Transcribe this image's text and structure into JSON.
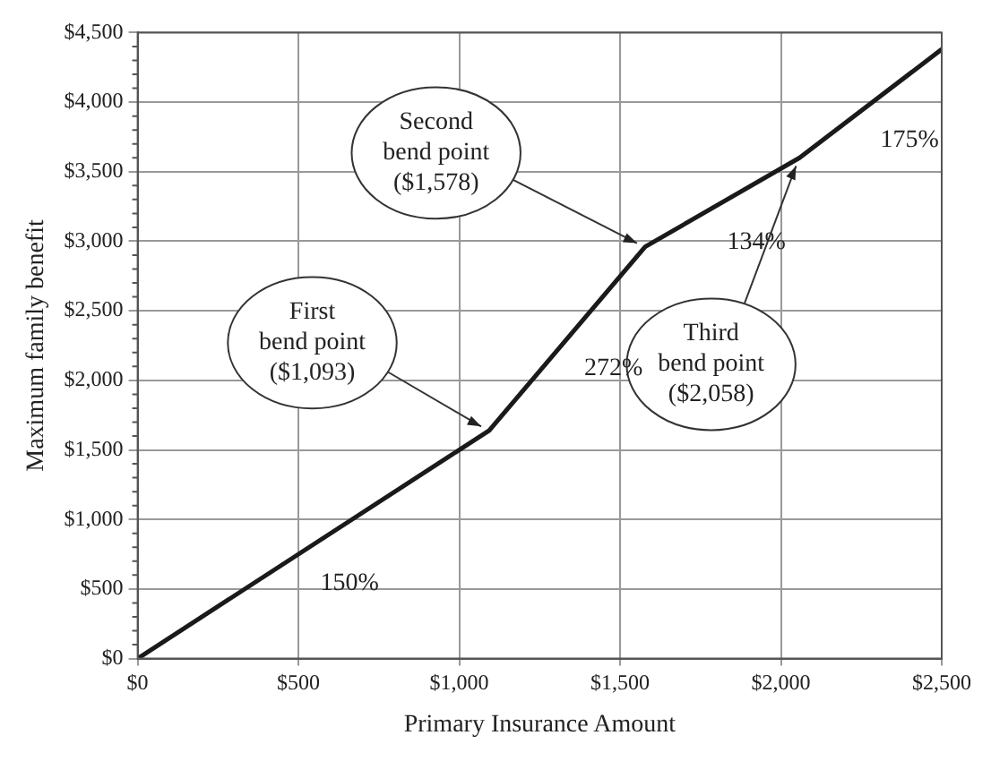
{
  "chart_data": {
    "type": "line",
    "xlabel": "Primary Insurance Amount",
    "ylabel": "Maximum family benefit",
    "x": [
      0,
      1093,
      1578,
      2058,
      2500
    ],
    "series": [
      {
        "color": "#1a1a1a",
        "values": [
          0,
          1640,
          2960,
          3600,
          4380
        ]
      }
    ],
    "xlim": [
      0,
      2500
    ],
    "xticks": [
      {
        "value": 0,
        "label": "$0"
      },
      {
        "value": 500,
        "label": "$500"
      },
      {
        "value": 1000,
        "label": "$1,000"
      },
      {
        "value": 1500,
        "label": "$1,500"
      },
      {
        "value": 2000,
        "label": "$2,000"
      },
      {
        "value": 2500,
        "label": "$2,500"
      }
    ],
    "ylim": [
      0,
      4500
    ],
    "yticks": [
      {
        "value": 0,
        "label": "$0"
      },
      {
        "value": 500,
        "label": "$500"
      },
      {
        "value": 1000,
        "label": "$1,000"
      },
      {
        "value": 1500,
        "label": "$1,500"
      },
      {
        "value": 2000,
        "label": "$2,000"
      },
      {
        "value": 2500,
        "label": "$2,500"
      },
      {
        "value": 3000,
        "label": "$3,000"
      },
      {
        "value": 3500,
        "label": "$3,500"
      },
      {
        "value": 4000,
        "label": "$4,000"
      },
      {
        "value": 4500,
        "label": "$4,500"
      }
    ],
    "grid": true,
    "legend": false,
    "marker": "none",
    "line_style": "solid",
    "annotations": [
      {
        "text": "First bend point ($1,093)",
        "x": 1093,
        "y": 1640
      },
      {
        "text": "Second bend point ($1,578)",
        "x": 1578,
        "y": 2960
      },
      {
        "text": "Third bend point ($2,058)",
        "x": 2058,
        "y": 3600
      },
      "150%",
      "272%",
      "134%",
      "175%"
    ]
  }
}
